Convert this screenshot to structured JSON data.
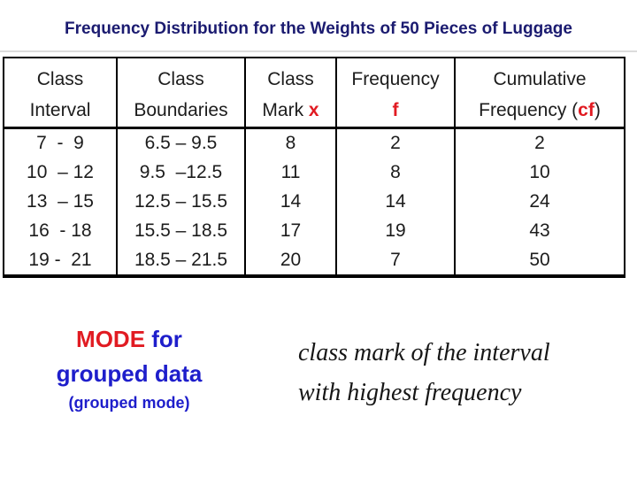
{
  "title": {
    "text": "Frequency Distribution for the Weights of 50 Pieces of Luggage",
    "color": "#1b1b70"
  },
  "colors": {
    "accent_red": "#e11b22",
    "accent_blue": "#1e1ecb",
    "title_navy": "#1b1b70",
    "table_text": "#1c1c1c",
    "border": "#000000",
    "background": "#ffffff"
  },
  "table": {
    "columns": [
      {
        "header_line1": "Class",
        "header_line2": "Interval",
        "rows": [
          "7  -  9",
          "10  – 12",
          "13  – 15",
          "16  - 18",
          "19 -  21"
        ]
      },
      {
        "header_line1": "Class",
        "header_line2": "Boundaries",
        "rows": [
          "6.5 – 9.5",
          "9.5  –12.5",
          "12.5 – 15.5",
          "15.5 – 18.5",
          "18.5 – 21.5"
        ]
      },
      {
        "header_line1": "Class",
        "header_line2_prefix": "Mark ",
        "header_accent": "x",
        "rows": [
          "8",
          "11",
          "14",
          "17",
          "20"
        ]
      },
      {
        "header_line1": "Frequency",
        "header_accent": "f",
        "rows": [
          "2",
          "8",
          "14",
          "19",
          "7"
        ]
      },
      {
        "header_line1": "Cumulative",
        "header_line2_prefix": "Frequency (",
        "header_accent": "cf",
        "header_line2_suffix": ")",
        "rows": [
          "2",
          "10",
          "24",
          "43",
          "50"
        ]
      }
    ]
  },
  "mode_block": {
    "accent": "MODE",
    "rest": " for",
    "line2": "grouped data",
    "line3": "(grouped mode)"
  },
  "note": {
    "line1": "class mark of  the interval",
    "line2": "with highest frequency"
  },
  "chart_data": {
    "type": "table",
    "title": "Frequency Distribution for the Weights of 50 Pieces of Luggage",
    "columns": [
      "Class Interval",
      "Class Boundaries",
      "Class Mark x",
      "Frequency f",
      "Cumulative Frequency (cf)"
    ],
    "rows": [
      [
        "7 - 9",
        "6.5 – 9.5",
        8,
        2,
        2
      ],
      [
        "10 – 12",
        "9.5 – 12.5",
        11,
        8,
        10
      ],
      [
        "13 – 15",
        "12.5 – 15.5",
        14,
        14,
        24
      ],
      [
        "16 - 18",
        "15.5 – 18.5",
        17,
        19,
        43
      ],
      [
        "19 - 21",
        "18.5 – 21.5",
        20,
        7,
        50
      ]
    ]
  }
}
